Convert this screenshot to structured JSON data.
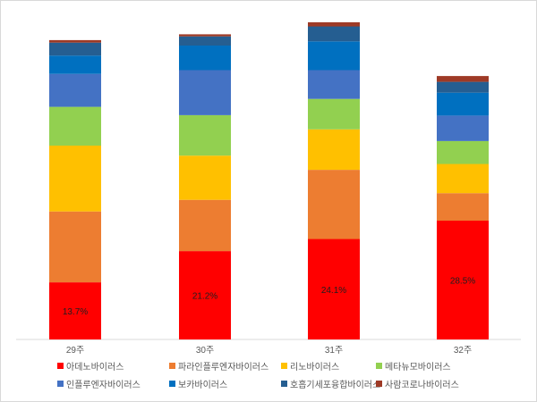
{
  "chart_data": {
    "type": "bar",
    "stacked": true,
    "categories": [
      "29주",
      "30주",
      "31주",
      "32주"
    ],
    "series": [
      {
        "name": "아데노바이러스",
        "color": "#ff0000",
        "values": [
          13.7,
          21.2,
          24.1,
          28.5
        ]
      },
      {
        "name": "파라인플루엔자바이러스",
        "color": "#ed7d31",
        "values": [
          17.0,
          12.3,
          16.6,
          6.6
        ]
      },
      {
        "name": "리노바이러스",
        "color": "#ffc000",
        "values": [
          15.8,
          10.6,
          9.7,
          7.0
        ]
      },
      {
        "name": "메타뉴모바이러스",
        "color": "#92d050",
        "values": [
          9.3,
          9.7,
          7.3,
          5.5
        ]
      },
      {
        "name": "인플루엔자바이러스",
        "color": "#4472c4",
        "values": [
          7.9,
          10.8,
          6.9,
          6.1
        ]
      },
      {
        "name": "보카바이러스",
        "color": "#0070c0",
        "values": [
          4.4,
          5.9,
          6.9,
          5.5
        ]
      },
      {
        "name": "호흡기세포융합바이러스",
        "color": "#255e91",
        "values": [
          3.1,
          2.2,
          3.6,
          2.6
        ]
      },
      {
        "name": "사람코로나바이러스",
        "color": "#9e3a26",
        "values": [
          0.6,
          0.5,
          1.0,
          1.4
        ]
      }
    ],
    "data_labels": [
      "13.7%",
      "21.2%",
      "24.1%",
      "28.5%"
    ],
    "ylim": [
      0,
      75
    ],
    "grid": false,
    "legend_position": "bottom"
  }
}
